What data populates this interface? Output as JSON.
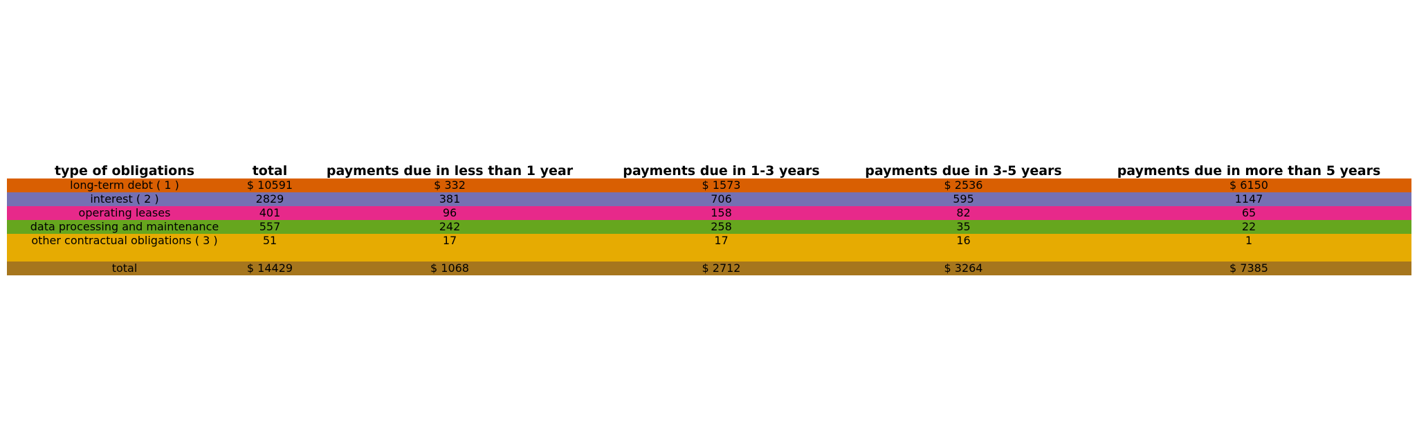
{
  "chart_data": {
    "type": "table",
    "columns": [
      "type of obligations",
      "total",
      "payments due in less than 1 year",
      "payments due in 1-3 years",
      "payments due in 3-5 years",
      "payments due in more than 5 years"
    ],
    "rows": [
      {
        "color": "#d95f02",
        "cells": [
          "long-term debt ( 1 )",
          "$ 10591",
          "$ 332",
          "$ 1573",
          "$ 2536",
          "$ 6150"
        ]
      },
      {
        "color": "#7570b3",
        "cells": [
          "interest ( 2 )",
          "2829",
          "381",
          "706",
          "595",
          "1147"
        ]
      },
      {
        "color": "#e7298a",
        "cells": [
          "operating leases",
          "401",
          "96",
          "158",
          "82",
          "65"
        ]
      },
      {
        "color": "#66a61e",
        "cells": [
          "data processing and maintenance",
          "557",
          "242",
          "258",
          "35",
          "22"
        ]
      },
      {
        "color": "#e6ab02",
        "tall": true,
        "cells": [
          "other contractual obligations ( 3 )",
          "51",
          "17",
          "17",
          "16",
          "1"
        ]
      },
      {
        "color": "#a6761d",
        "cells": [
          "total",
          "$ 14429",
          "$ 1068",
          "$ 2712",
          "$ 3264",
          "$ 7385"
        ]
      }
    ]
  }
}
